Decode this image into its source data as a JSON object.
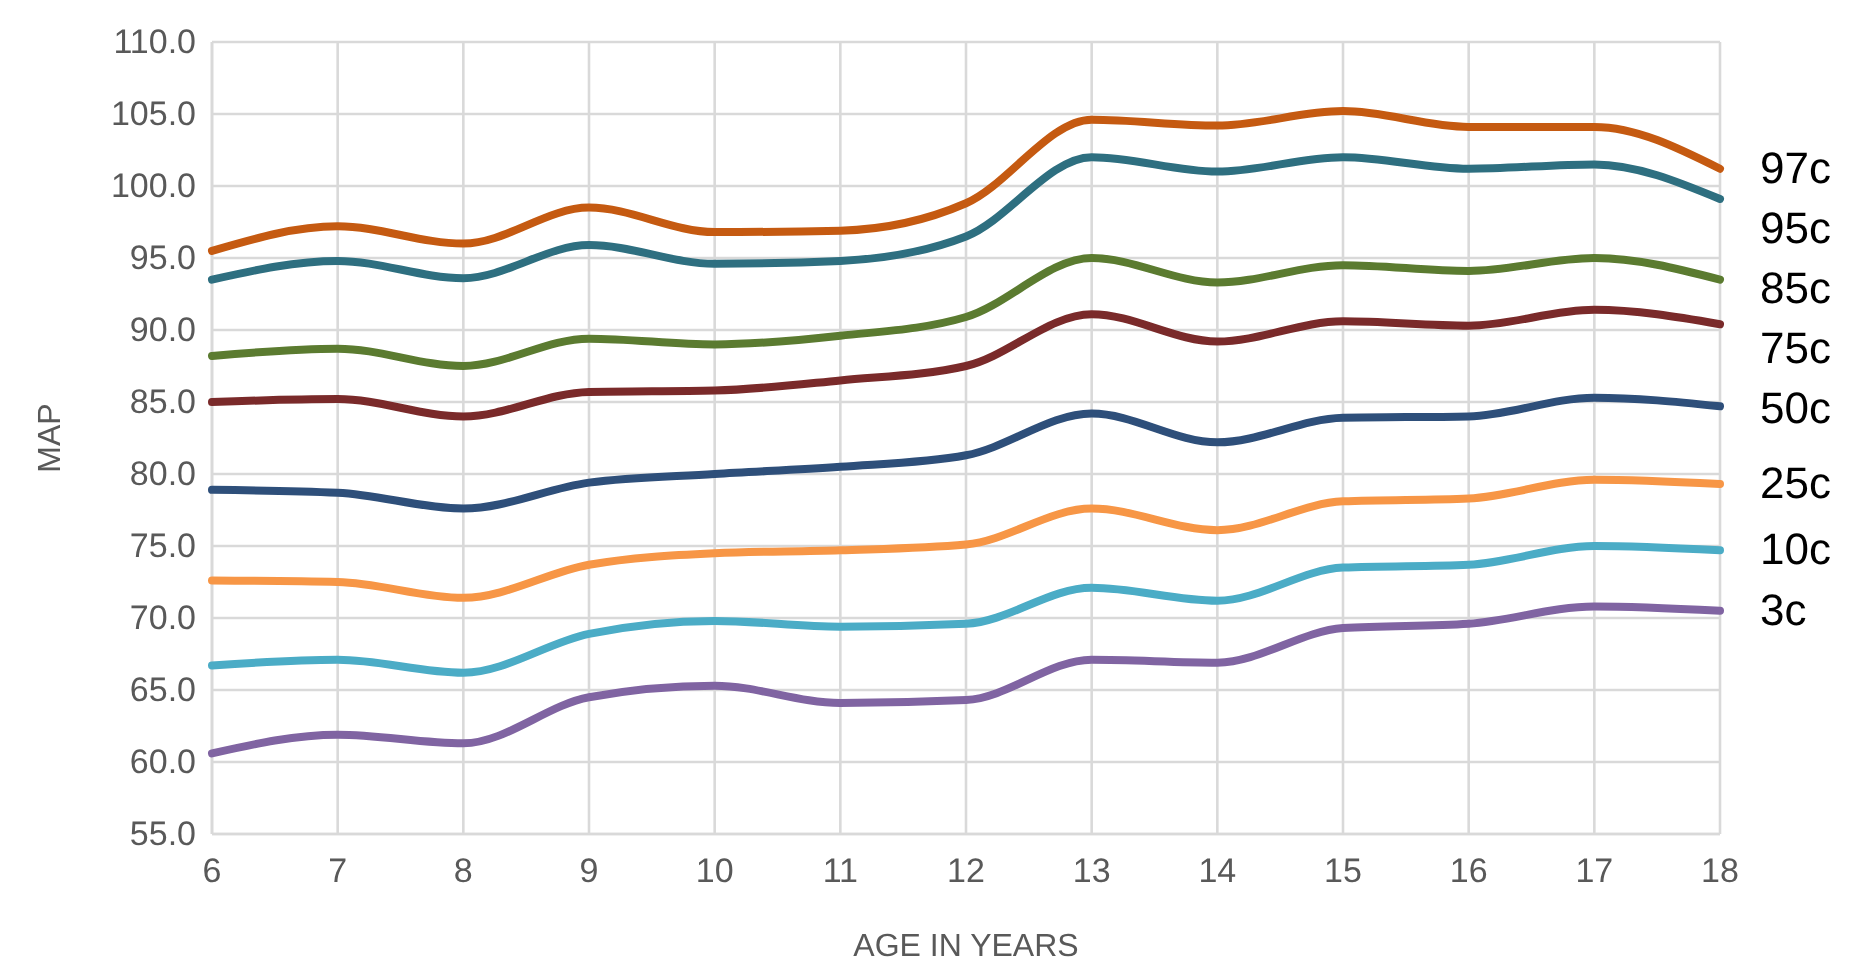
{
  "chart_data": {
    "type": "line",
    "xlabel": "AGE IN YEARS",
    "ylabel": "MAP",
    "x": [
      6,
      7,
      8,
      9,
      10,
      11,
      12,
      13,
      14,
      15,
      16,
      17,
      18
    ],
    "xlim": [
      6,
      18
    ],
    "xticks": [
      6,
      7,
      8,
      9,
      10,
      11,
      12,
      13,
      14,
      15,
      16,
      17,
      18
    ],
    "ylim": [
      55,
      110
    ],
    "yticks": [
      {
        "value": 55,
        "label": "55.0"
      },
      {
        "value": 60,
        "label": "60.0"
      },
      {
        "value": 65,
        "label": "65.0"
      },
      {
        "value": 70,
        "label": "70.0"
      },
      {
        "value": 75,
        "label": "75.0"
      },
      {
        "value": 80,
        "label": "80.0"
      },
      {
        "value": 85,
        "label": "85.0"
      },
      {
        "value": 90,
        "label": "90.0"
      },
      {
        "value": 95,
        "label": "95.0"
      },
      {
        "value": 100,
        "label": "100.0"
      },
      {
        "value": 105,
        "label": "105.0"
      },
      {
        "value": 110,
        "label": "110.0"
      }
    ],
    "grid": true,
    "marker": "none",
    "line_style": "solid",
    "series": [
      {
        "name": "97c",
        "color": "#c55a11",
        "values": [
          95.5,
          97.2,
          96.0,
          98.5,
          96.8,
          96.9,
          98.8,
          104.6,
          104.2,
          105.2,
          104.1,
          104.1,
          101.2
        ]
      },
      {
        "name": "95c",
        "color": "#2e6f80",
        "values": [
          93.5,
          94.8,
          93.6,
          95.9,
          94.6,
          94.8,
          96.5,
          102.0,
          101.0,
          102.0,
          101.2,
          101.5,
          99.1
        ]
      },
      {
        "name": "85c",
        "color": "#5b7b30",
        "values": [
          88.2,
          88.7,
          87.5,
          89.4,
          89.0,
          89.6,
          90.9,
          95.0,
          93.3,
          94.5,
          94.1,
          95.0,
          93.5
        ]
      },
      {
        "name": "75c",
        "color": "#7a2a2a",
        "values": [
          85.0,
          85.2,
          84.0,
          85.7,
          85.8,
          86.5,
          87.5,
          91.1,
          89.2,
          90.6,
          90.3,
          91.4,
          90.4
        ]
      },
      {
        "name": "50c",
        "color": "#2e4f7a",
        "values": [
          78.9,
          78.7,
          77.6,
          79.4,
          80.0,
          80.5,
          81.3,
          84.2,
          82.2,
          83.9,
          84.0,
          85.3,
          84.7
        ]
      },
      {
        "name": "25c",
        "color": "#f79646",
        "values": [
          72.6,
          72.5,
          71.4,
          73.7,
          74.5,
          74.7,
          75.1,
          77.6,
          76.1,
          78.1,
          78.3,
          79.6,
          79.3
        ]
      },
      {
        "name": "10c",
        "color": "#4bacc6",
        "values": [
          66.7,
          67.1,
          66.2,
          68.9,
          69.8,
          69.4,
          69.6,
          72.1,
          71.2,
          73.5,
          73.7,
          75.0,
          74.7
        ]
      },
      {
        "name": "3c",
        "color": "#8064a2",
        "values": [
          60.6,
          61.9,
          61.3,
          64.5,
          65.3,
          64.1,
          64.3,
          67.1,
          66.9,
          69.3,
          69.6,
          70.8,
          70.5
        ]
      }
    ]
  }
}
